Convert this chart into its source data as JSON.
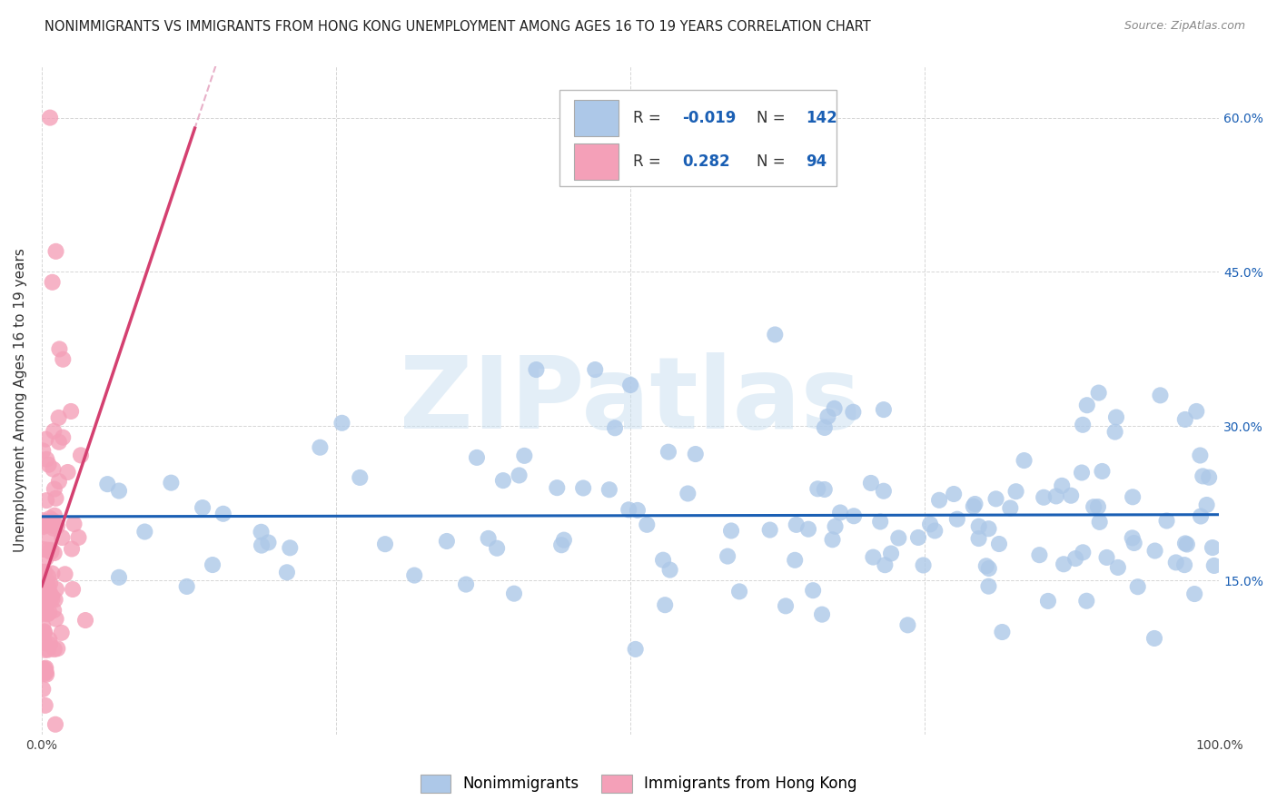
{
  "title": "NONIMMIGRANTS VS IMMIGRANTS FROM HONG KONG UNEMPLOYMENT AMONG AGES 16 TO 19 YEARS CORRELATION CHART",
  "source": "Source: ZipAtlas.com",
  "ylabel": "Unemployment Among Ages 16 to 19 years",
  "xlim": [
    0,
    1.0
  ],
  "ylim": [
    0,
    0.65
  ],
  "r_nonimmigrant": -0.019,
  "n_nonimmigrant": 142,
  "r_immigrant": 0.282,
  "n_immigrant": 94,
  "nonimmigrant_color": "#adc8e8",
  "nonimmigrant_line_color": "#1a5fb4",
  "immigrant_color": "#f4a0b8",
  "immigrant_line_color": "#d44070",
  "immigrant_dashed_color": "#e8b0c8",
  "watermark_color": "#c8dff0",
  "background_color": "#ffffff",
  "grid_color": "#cccccc",
  "title_fontsize": 10.5,
  "axis_label_fontsize": 11,
  "tick_fontsize": 10,
  "legend_fontsize": 12,
  "seed_ni": 42,
  "seed_im": 77
}
